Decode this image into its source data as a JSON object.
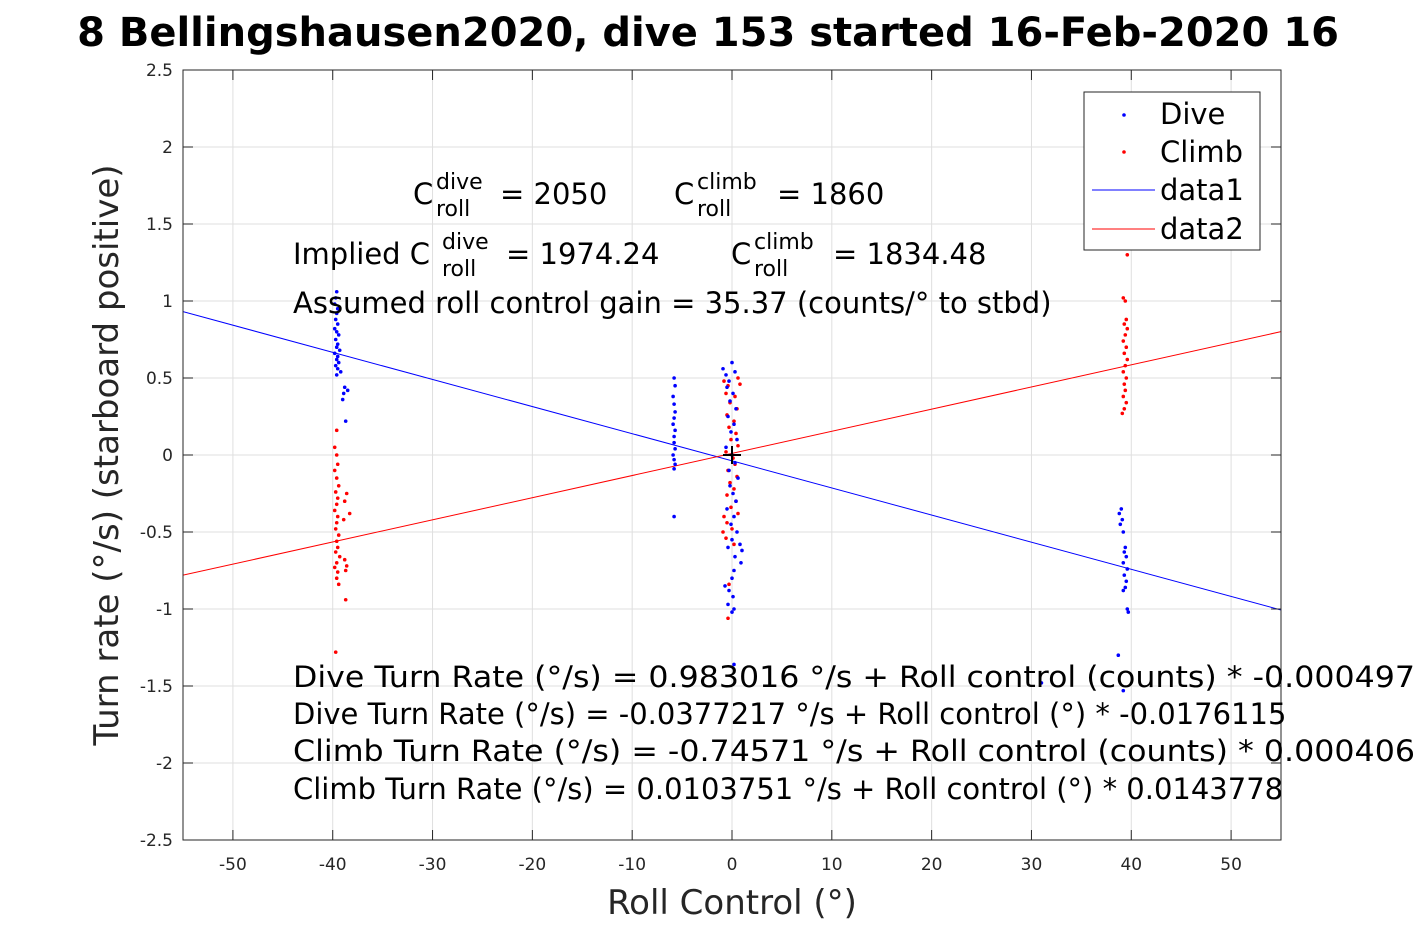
{
  "chart_data": {
    "type": "scatter",
    "title": "8 Bellingshausen2020, dive 153 started 16-Feb-2020 16",
    "xlabel": "Roll Control (°)",
    "ylabel": "Turn rate (°/s) (starboard positive)",
    "xlim": [
      -55,
      55
    ],
    "ylim": [
      -2.5,
      2.5
    ],
    "grid": true,
    "x_ticks": [
      -50,
      -40,
      -30,
      -20,
      -10,
      0,
      10,
      20,
      30,
      40,
      50
    ],
    "y_ticks": [
      -2.5,
      -2,
      -1.5,
      -1,
      -0.5,
      0,
      0.5,
      1,
      1.5,
      2,
      2.5
    ],
    "x_tick_labels": [
      "-50",
      "-40",
      "-30",
      "-20",
      "-10",
      "0",
      "10",
      "20",
      "30",
      "40",
      "50"
    ],
    "y_tick_labels": [
      "-2.5",
      "-2",
      "-1.5",
      "-1",
      "-0.5",
      "0",
      "0.5",
      "1",
      "1.5",
      "2",
      "2.5"
    ],
    "legend": {
      "position": "top-right",
      "entries": [
        "Dive",
        "Climb",
        "data1",
        "data2"
      ]
    },
    "series": [
      {
        "name": "Dive",
        "kind": "points",
        "color": "#0000ff",
        "points": [
          [
            -39.6,
            1.06
          ],
          [
            -39.7,
            1.02
          ],
          [
            -39.8,
            0.98
          ],
          [
            -39.5,
            0.95
          ],
          [
            -39.6,
            0.92
          ],
          [
            -39.7,
            0.88
          ],
          [
            -39.5,
            0.85
          ],
          [
            -39.8,
            0.82
          ],
          [
            -39.6,
            0.8
          ],
          [
            -39.4,
            0.78
          ],
          [
            -39.7,
            0.75
          ],
          [
            -39.5,
            0.72
          ],
          [
            -39.6,
            0.7
          ],
          [
            -39.3,
            0.68
          ],
          [
            -39.8,
            0.66
          ],
          [
            -39.5,
            0.64
          ],
          [
            -39.6,
            0.62
          ],
          [
            -39.4,
            0.6
          ],
          [
            -39.7,
            0.58
          ],
          [
            -39.5,
            0.56
          ],
          [
            -39.2,
            0.54
          ],
          [
            -39.6,
            0.52
          ],
          [
            -38.8,
            0.44
          ],
          [
            -38.5,
            0.42
          ],
          [
            -38.9,
            0.4
          ],
          [
            -39.0,
            0.36
          ],
          [
            -38.7,
            0.22
          ],
          [
            -5.8,
            0.5
          ],
          [
            -5.7,
            0.45
          ],
          [
            -5.9,
            0.38
          ],
          [
            -5.8,
            0.33
          ],
          [
            -5.7,
            0.28
          ],
          [
            -5.8,
            0.24
          ],
          [
            -5.9,
            0.2
          ],
          [
            -5.7,
            0.16
          ],
          [
            -5.8,
            0.12
          ],
          [
            -5.8,
            0.08
          ],
          [
            -5.7,
            0.04
          ],
          [
            -5.9,
            0.0
          ],
          [
            -5.8,
            -0.03
          ],
          [
            -5.7,
            -0.06
          ],
          [
            -5.8,
            -0.09
          ],
          [
            -5.8,
            -0.4
          ],
          [
            -0.9,
            0.56
          ],
          [
            -0.6,
            0.52
          ],
          [
            -0.3,
            0.48
          ],
          [
            0.0,
            0.6
          ],
          [
            0.3,
            0.54
          ],
          [
            -0.5,
            0.44
          ],
          [
            0.1,
            0.4
          ],
          [
            -0.2,
            0.35
          ],
          [
            0.4,
            0.3
          ],
          [
            -0.4,
            0.25
          ],
          [
            0.2,
            0.2
          ],
          [
            -0.1,
            0.15
          ],
          [
            0.5,
            0.1
          ],
          [
            -0.6,
            0.05
          ],
          [
            0.0,
            0.0
          ],
          [
            0.3,
            -0.05
          ],
          [
            -0.3,
            -0.1
          ],
          [
            0.6,
            -0.15
          ],
          [
            -0.2,
            -0.2
          ],
          [
            0.1,
            -0.25
          ],
          [
            0.4,
            -0.3
          ],
          [
            -0.5,
            -0.35
          ],
          [
            0.2,
            -0.4
          ],
          [
            -0.1,
            -0.45
          ],
          [
            0.5,
            -0.5
          ],
          [
            0.0,
            -0.55
          ],
          [
            0.8,
            -0.58
          ],
          [
            -0.4,
            -0.6
          ],
          [
            1.0,
            -0.62
          ],
          [
            0.3,
            -0.66
          ],
          [
            0.9,
            -0.7
          ],
          [
            0.2,
            -0.75
          ],
          [
            0.0,
            -0.8
          ],
          [
            -0.7,
            -0.85
          ],
          [
            -0.3,
            -0.88
          ],
          [
            0.1,
            -0.92
          ],
          [
            -0.4,
            -0.97
          ],
          [
            0.2,
            -1.0
          ],
          [
            0.0,
            -1.02
          ],
          [
            0.2,
            -1.36
          ],
          [
            39.0,
            -0.35
          ],
          [
            38.8,
            -0.38
          ],
          [
            39.1,
            -0.42
          ],
          [
            38.9,
            -0.45
          ],
          [
            39.2,
            -0.5
          ],
          [
            39.4,
            -0.6
          ],
          [
            39.3,
            -0.63
          ],
          [
            39.5,
            -0.66
          ],
          [
            39.2,
            -0.7
          ],
          [
            39.6,
            -0.74
          ],
          [
            39.3,
            -0.78
          ],
          [
            39.5,
            -0.82
          ],
          [
            39.4,
            -0.86
          ],
          [
            39.2,
            -0.88
          ],
          [
            39.6,
            -1.0
          ],
          [
            39.7,
            -1.02
          ],
          [
            38.7,
            -1.3
          ],
          [
            39.2,
            -1.53
          ],
          [
            31.0,
            -1.48
          ]
        ]
      },
      {
        "name": "Climb",
        "kind": "points",
        "color": "#ff0000",
        "points": [
          [
            -39.6,
            0.0
          ],
          [
            -39.5,
            -0.06
          ],
          [
            -39.8,
            -0.1
          ],
          [
            -39.6,
            -0.15
          ],
          [
            -39.4,
            -0.2
          ],
          [
            -39.7,
            -0.24
          ],
          [
            -39.5,
            -0.28
          ],
          [
            -39.6,
            -0.32
          ],
          [
            -39.8,
            -0.36
          ],
          [
            -39.5,
            -0.4
          ],
          [
            -39.6,
            -0.44
          ],
          [
            -39.7,
            -0.48
          ],
          [
            -39.4,
            -0.52
          ],
          [
            -39.6,
            -0.56
          ],
          [
            -39.5,
            -0.6
          ],
          [
            -39.7,
            -0.63
          ],
          [
            -39.3,
            -0.66
          ],
          [
            -39.6,
            -0.7
          ],
          [
            -39.8,
            -0.73
          ],
          [
            -39.5,
            -0.76
          ],
          [
            -39.6,
            -0.8
          ],
          [
            -39.4,
            -0.84
          ],
          [
            -38.8,
            -0.3
          ],
          [
            -38.6,
            -0.25
          ],
          [
            -38.9,
            -0.42
          ],
          [
            -38.3,
            -0.38
          ],
          [
            -38.8,
            -0.68
          ],
          [
            -38.6,
            -0.72
          ],
          [
            -38.7,
            -0.75
          ],
          [
            -38.7,
            -0.94
          ],
          [
            -39.7,
            -1.28
          ],
          [
            -39.6,
            0.16
          ],
          [
            -39.8,
            0.05
          ],
          [
            -0.8,
            0.48
          ],
          [
            -0.4,
            0.45
          ],
          [
            0.6,
            0.5
          ],
          [
            0.8,
            0.46
          ],
          [
            -0.6,
            0.4
          ],
          [
            0.3,
            0.38
          ],
          [
            -0.2,
            0.34
          ],
          [
            0.5,
            0.3
          ],
          [
            -0.5,
            0.26
          ],
          [
            0.2,
            0.22
          ],
          [
            -0.3,
            0.18
          ],
          [
            0.4,
            0.14
          ],
          [
            -0.1,
            0.1
          ],
          [
            0.6,
            0.06
          ],
          [
            -0.6,
            0.02
          ],
          [
            0.1,
            -0.02
          ],
          [
            0.3,
            -0.06
          ],
          [
            -0.4,
            -0.1
          ],
          [
            0.5,
            -0.14
          ],
          [
            -0.2,
            -0.18
          ],
          [
            0.2,
            -0.22
          ],
          [
            -0.5,
            -0.26
          ],
          [
            0.4,
            -0.3
          ],
          [
            -0.1,
            -0.34
          ],
          [
            0.6,
            -0.38
          ],
          [
            -0.8,
            -0.4
          ],
          [
            -0.5,
            -0.44
          ],
          [
            0.0,
            -0.48
          ],
          [
            -0.9,
            -0.5
          ],
          [
            -0.6,
            -0.54
          ],
          [
            0.2,
            -0.58
          ],
          [
            -0.3,
            -0.84
          ],
          [
            -0.4,
            -1.06
          ],
          [
            39.6,
            1.3
          ],
          [
            39.2,
            1.02
          ],
          [
            39.4,
            1.0
          ],
          [
            39.5,
            0.88
          ],
          [
            39.3,
            0.85
          ],
          [
            39.6,
            0.82
          ],
          [
            39.4,
            0.78
          ],
          [
            39.2,
            0.74
          ],
          [
            39.5,
            0.7
          ],
          [
            39.3,
            0.66
          ],
          [
            39.6,
            0.62
          ],
          [
            39.4,
            0.58
          ],
          [
            39.2,
            0.54
          ],
          [
            39.5,
            0.5
          ],
          [
            39.3,
            0.46
          ],
          [
            39.4,
            0.42
          ],
          [
            39.2,
            0.38
          ],
          [
            39.5,
            0.34
          ],
          [
            39.3,
            0.3
          ],
          [
            39.1,
            0.27
          ]
        ]
      },
      {
        "name": "data1",
        "kind": "line",
        "color": "#0000ff",
        "intercept": -0.0377217,
        "slope": -0.0176115
      },
      {
        "name": "data2",
        "kind": "line",
        "color": "#ff0000",
        "intercept": 0.0103751,
        "slope": 0.0143778
      }
    ],
    "center_marker": {
      "x": 0,
      "y": 0
    },
    "annotations": {
      "c_roll_dive_value": "= 2050",
      "c_roll_climb_value": "= 1860",
      "implied_prefix": "Implied C",
      "implied_dive_value": "= 1974.24",
      "implied_climb_value": "= 1834.48",
      "c_letter": "C",
      "sup_dive": "dive",
      "sup_climb": "climb",
      "sub_roll": "roll",
      "gain": "Assumed roll control gain = 35.37 (counts/° to stbd)",
      "eq1": "Dive Turn Rate (°/s) = 0.983016 °/s + Roll control (counts) * -0.000497",
      "eq2": "Dive Turn Rate (°/s) = -0.0377217 °/s + Roll control (°) * -0.0176115",
      "eq3": "Climb Turn Rate (°/s) = -0.74571 °/s + Roll control (counts) * 0.000406",
      "eq4": "Climb Turn Rate (°/s) = 0.0103751 °/s + Roll control (°) * 0.0143778"
    }
  }
}
